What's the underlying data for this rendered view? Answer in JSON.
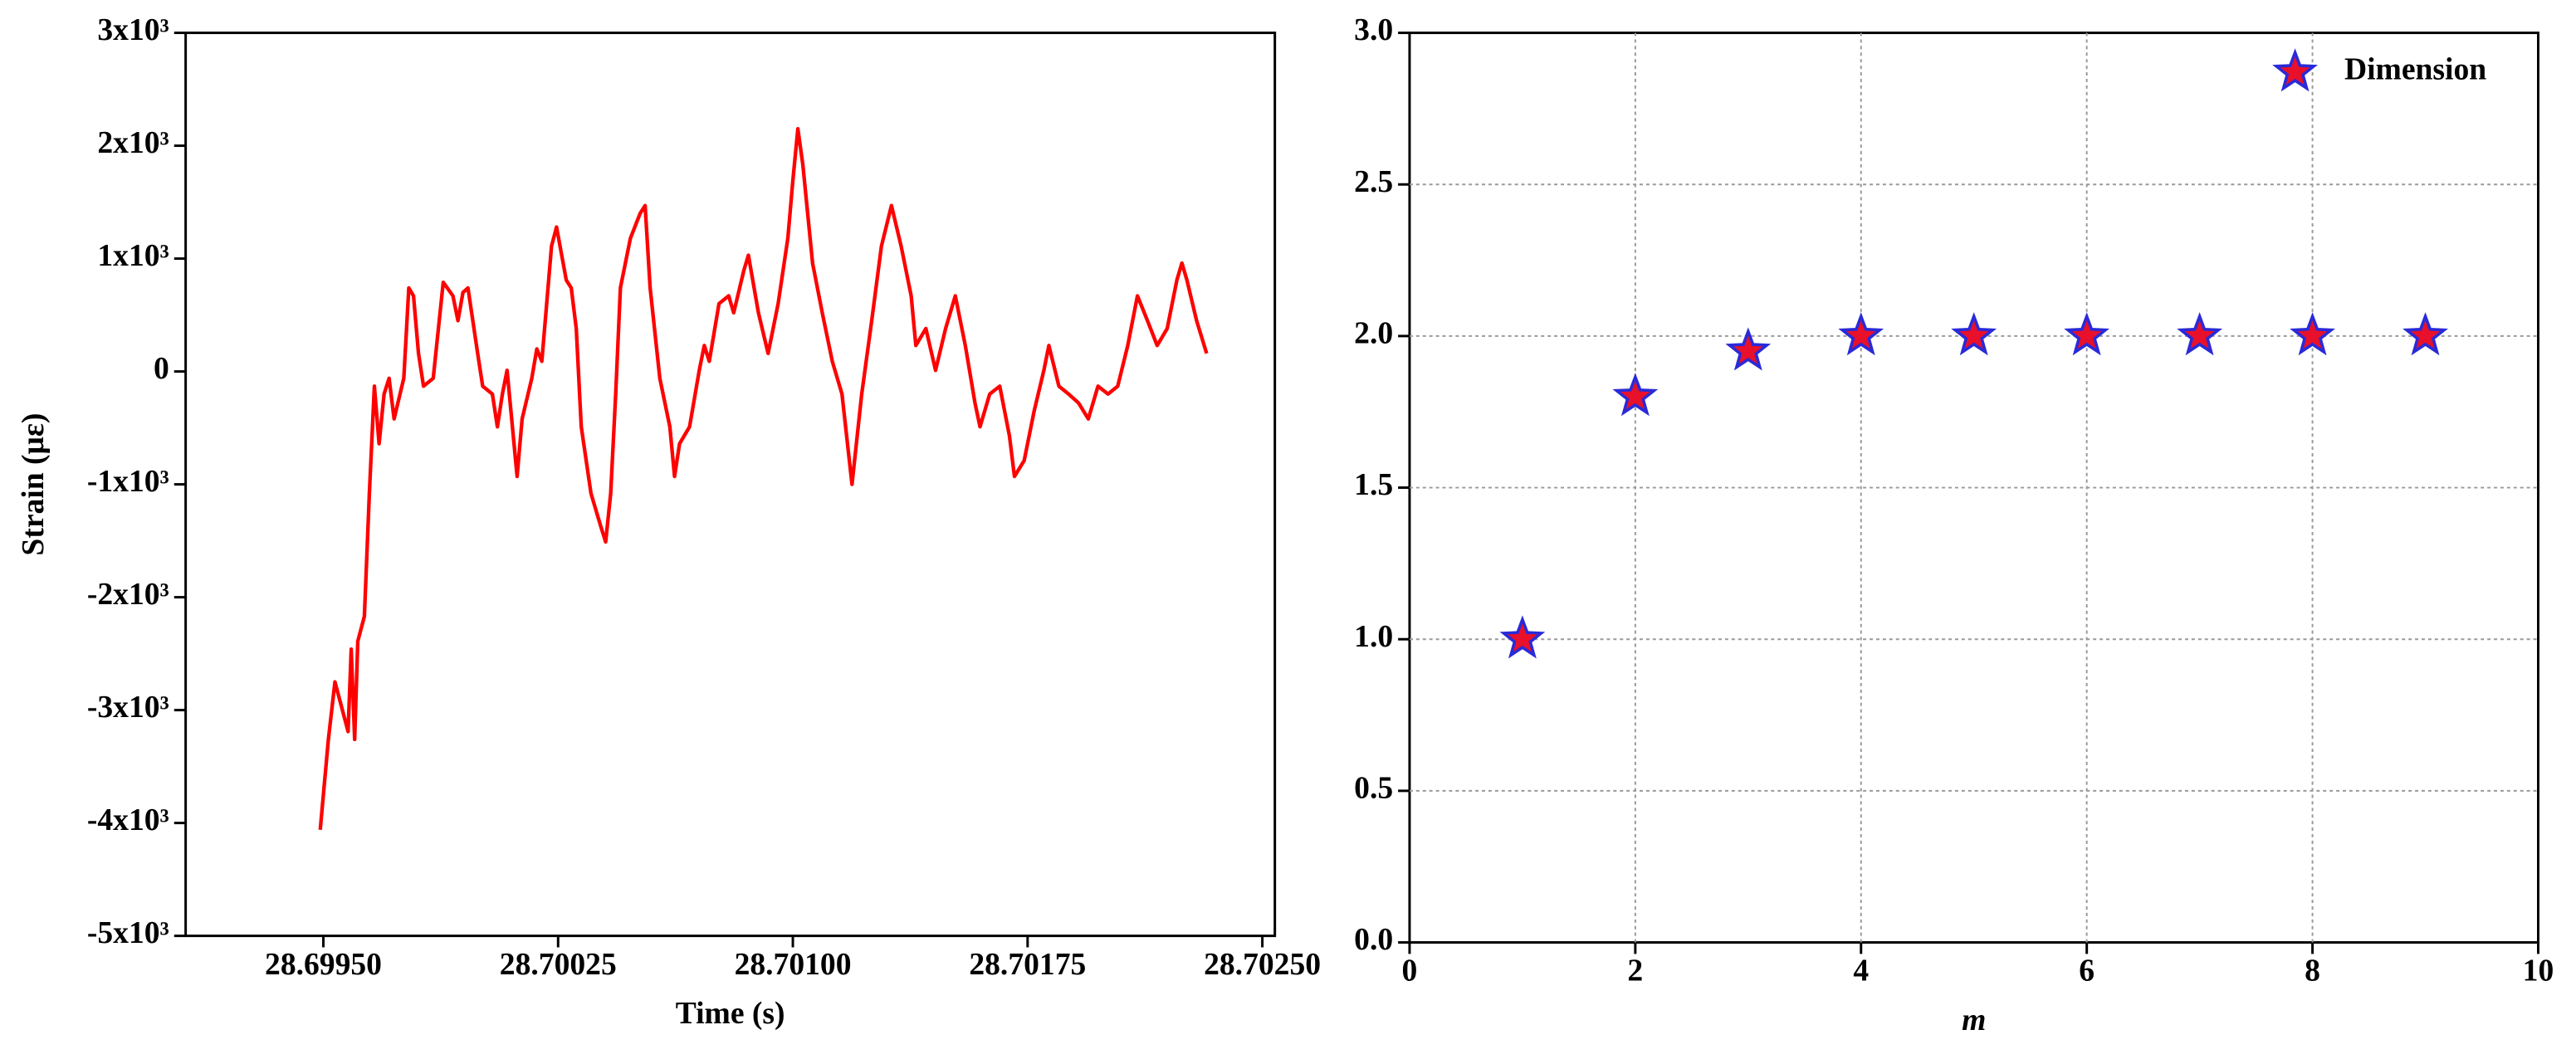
{
  "chart_data": [
    {
      "type": "line",
      "x_label": "Time (s)",
      "y_label": "Strain (με)",
      "xlim": [
        28.69906,
        28.70254
      ],
      "ylim": [
        -5000,
        3000
      ],
      "xticks": [
        {
          "value": 28.6995,
          "label": "28.69950"
        },
        28.70025,
        {
          "value": 28.701,
          "label": "28.70100"
        },
        28.70175,
        {
          "value": 28.7025,
          "label": "28.70250"
        }
      ],
      "yticks": [
        {
          "value": -5000,
          "label": "-5x10³"
        },
        {
          "value": -4000,
          "label": "-4x10³"
        },
        {
          "value": -3000,
          "label": "-3x10³"
        },
        {
          "value": -2000,
          "label": "-2x10³"
        },
        {
          "value": -1000,
          "label": "-1x10³"
        },
        0,
        {
          "value": 1000,
          "label": "1x10³"
        },
        {
          "value": 2000,
          "label": "2x10³"
        },
        {
          "value": 3000,
          "label": "3x10³"
        }
      ],
      "grid": false,
      "x": [
        28.69949,
        28.699516,
        28.699537,
        28.699558,
        28.699579,
        28.699589,
        28.6996,
        28.69961,
        28.699631,
        28.699647,
        28.699663,
        28.699678,
        28.699694,
        28.69971,
        28.699726,
        28.699757,
        28.699773,
        28.699788,
        28.699804,
        28.69982,
        28.699851,
        28.699883,
        28.699914,
        28.69993,
        28.699946,
        28.699962,
        28.699993,
        28.700009,
        28.70004,
        28.700056,
        28.700072,
        28.700087,
        28.700119,
        28.700135,
        28.700166,
        28.700182,
        28.700198,
        28.700229,
        28.700245,
        28.700276,
        28.700292,
        28.700308,
        28.700324,
        28.700355,
        28.700386,
        28.700402,
        28.700418,
        28.700434,
        28.700449,
        28.700481,
        28.700512,
        28.700528,
        28.700544,
        28.700575,
        28.700607,
        28.700622,
        28.700638,
        28.70067,
        28.700701,
        28.700717,
        28.700733,
        28.700764,
        28.700795,
        28.700811,
        28.700843,
        28.700858,
        28.70089,
        28.700921,
        28.700953,
        28.700984,
        28.701,
        28.701016,
        28.701032,
        28.701063,
        28.701094,
        28.701126,
        28.701157,
        28.701189,
        28.70122,
        28.701252,
        28.701283,
        28.701315,
        28.701346,
        28.701378,
        28.701393,
        28.701425,
        28.701456,
        28.701488,
        28.701519,
        28.701551,
        28.701582,
        28.701598,
        28.701629,
        28.701661,
        28.701692,
        28.701708,
        28.701739,
        28.701771,
        28.701802,
        28.701818,
        28.70185,
        28.701881,
        28.701913,
        28.701944,
        28.701975,
        28.702007,
        28.702038,
        28.70207,
        28.702101,
        28.702133,
        28.702164,
        28.702196,
        28.702227,
        28.702243,
        28.702259,
        28.70229,
        28.702322
      ],
      "series": [
        {
          "color": "#ff0000",
          "values": [
            -4060,
            -3260,
            -2750,
            -2970,
            -3190,
            -2460,
            -3260,
            -2390,
            -2170,
            -1080,
            -130,
            -640,
            -200,
            -60,
            -420,
            -60,
            740,
            670,
            160,
            -130,
            -60,
            790,
            670,
            450,
            700,
            740,
            160,
            -130,
            -200,
            -490,
            -200,
            10,
            -930,
            -420,
            -60,
            200,
            90,
            1110,
            1280,
            810,
            740,
            380,
            -490,
            -1080,
            -1370,
            -1510,
            -1080,
            -200,
            740,
            1180,
            1400,
            1470,
            740,
            -60,
            -490,
            -930,
            -640,
            -490,
            10,
            230,
            90,
            600,
            670,
            520,
            890,
            1030,
            520,
            160,
            600,
            1180,
            1690,
            2150,
            1830,
            960,
            520,
            90,
            -200,
            -1000,
            -200,
            450,
            1110,
            1470,
            1110,
            670,
            230,
            380,
            10,
            380,
            670,
            230,
            -280,
            -490,
            -200,
            -130,
            -570,
            -930,
            -790,
            -350,
            10,
            230,
            -130,
            -200,
            -280,
            -420,
            -130,
            -200,
            -130,
            230,
            670,
            450,
            230,
            380,
            810,
            960,
            810,
            450,
            160
          ]
        }
      ]
    },
    {
      "type": "scatter",
      "x_label": "m",
      "xlim": [
        0,
        10
      ],
      "ylim": [
        0,
        3
      ],
      "xticks": [
        0,
        2,
        4,
        6,
        8,
        10
      ],
      "yticks": [
        {
          "value": 0,
          "label": "0.0"
        },
        0.5,
        {
          "value": 1,
          "label": "1.0"
        },
        1.5,
        {
          "value": 2,
          "label": "2.0"
        },
        2.5,
        {
          "value": 3,
          "label": "3.0"
        }
      ],
      "grid": true,
      "legend": "upper right",
      "x": [
        1,
        2,
        3,
        4,
        5,
        6,
        7,
        8,
        9
      ],
      "series": [
        {
          "name": "Dimension",
          "color": "#e8102a",
          "edgecolor": "#2a2ad8",
          "values": [
            1,
            1.8,
            1.95,
            2,
            2,
            2,
            2,
            2,
            2
          ]
        }
      ]
    }
  ]
}
